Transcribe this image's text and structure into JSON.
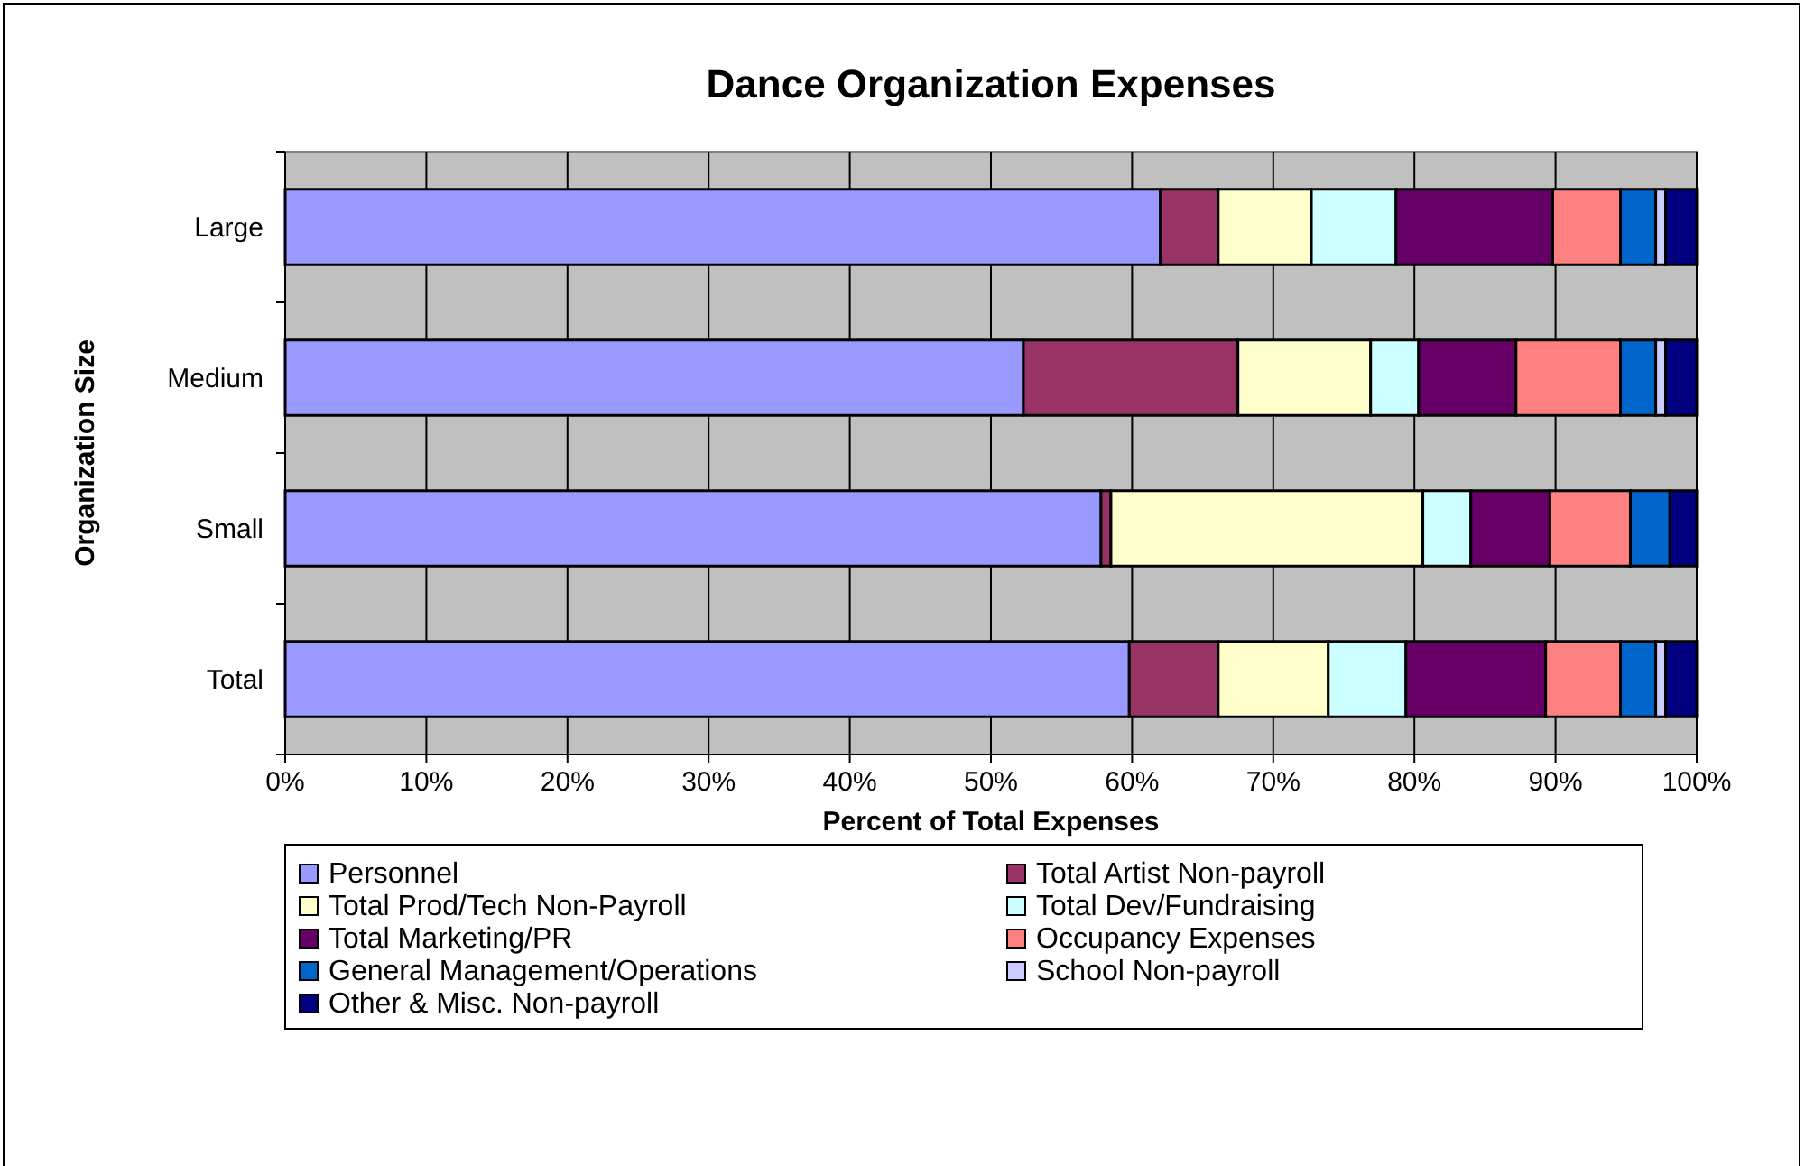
{
  "chart_data": {
    "type": "bar",
    "orientation": "horizontal",
    "stacked": true,
    "title": "Dance Organization Expenses",
    "xlabel": "Percent of Total Expenses",
    "ylabel": "Organization Size",
    "categories": [
      "Large",
      "Medium",
      "Small",
      "Total"
    ],
    "series": [
      {
        "name": "Personnel",
        "color": "#9999ff",
        "values": [
          62,
          52.3,
          57.8,
          59.8
        ]
      },
      {
        "name": "Total Artist Non-payroll",
        "color": "#993366",
        "values": [
          4.1,
          15.2,
          0.7,
          6.3
        ]
      },
      {
        "name": "Total Prod/Tech Non-Payroll",
        "color": "#ffffcc",
        "values": [
          6.6,
          9.4,
          22.1,
          7.8
        ]
      },
      {
        "name": "Total Dev/Fundraising",
        "color": "#ccffff",
        "values": [
          6.0,
          3.4,
          3.4,
          5.5
        ]
      },
      {
        "name": "Total Marketing/PR",
        "color": "#660066",
        "values": [
          11.1,
          6.9,
          5.6,
          9.9
        ]
      },
      {
        "name": "Occupancy Expenses",
        "color": "#ff8080",
        "values": [
          4.8,
          7.4,
          5.7,
          5.3
        ]
      },
      {
        "name": "General Management/Operations",
        "color": "#0066cc",
        "values": [
          2.5,
          2.5,
          2.8,
          2.5
        ]
      },
      {
        "name": "School Non-payroll",
        "color": "#ccccff",
        "values": [
          0.7,
          0.7,
          null,
          0.7
        ]
      },
      {
        "name": "Other & Misc. Non-payroll",
        "color": "#000080",
        "values": [
          2.2,
          2.2,
          1.9,
          2.2
        ]
      }
    ],
    "xlim": [
      0,
      100
    ],
    "xticks": [
      {
        "value": 0,
        "label": "0%"
      },
      {
        "value": 10,
        "label": "10%"
      },
      {
        "value": 20,
        "label": "20%"
      },
      {
        "value": 30,
        "label": "30%"
      },
      {
        "value": 40,
        "label": "40%"
      },
      {
        "value": 50,
        "label": "50%"
      },
      {
        "value": 60,
        "label": "60%"
      },
      {
        "value": 70,
        "label": "70%"
      },
      {
        "value": 80,
        "label": "80%"
      },
      {
        "value": 90,
        "label": "90%"
      },
      {
        "value": 100,
        "label": "100%"
      }
    ],
    "grid": "x",
    "legend": "bottom"
  }
}
